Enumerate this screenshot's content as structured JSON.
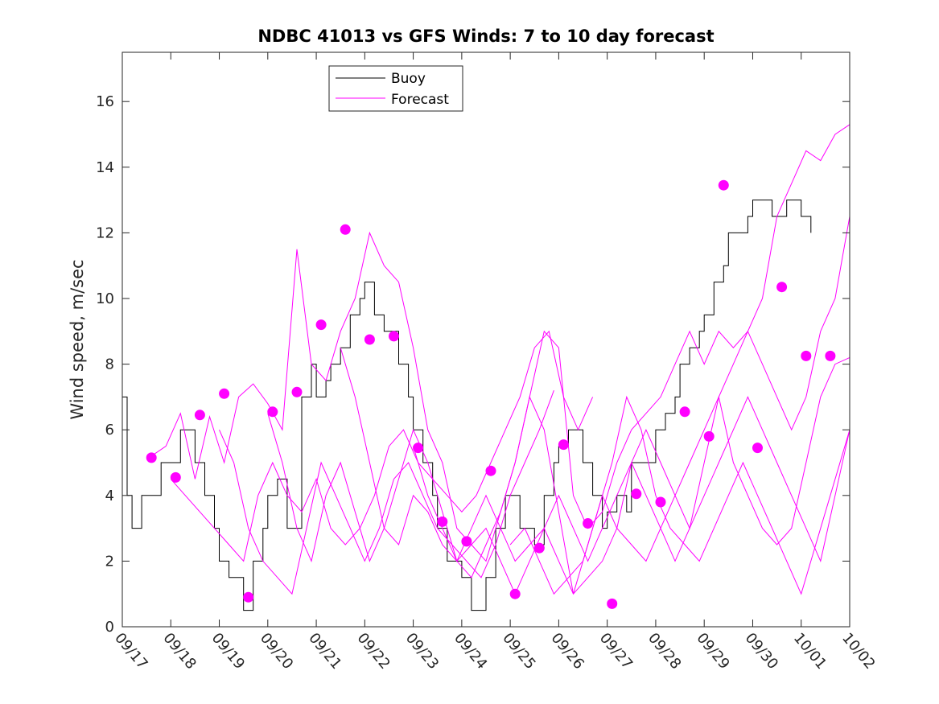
{
  "chart_data": {
    "type": "line",
    "title": "NDBC 41013 vs GFS Winds: 7 to 10 day forecast",
    "xlabel": "",
    "ylabel": "Wind speed, m/sec",
    "xlim": [
      0,
      15
    ],
    "ylim": [
      0,
      17.5
    ],
    "grid": false,
    "legend_position": "top-center",
    "x_ticks": [
      0,
      1,
      2,
      3,
      4,
      5,
      6,
      7,
      8,
      9,
      10,
      11,
      12,
      13,
      14,
      15
    ],
    "x_tick_labels": [
      "09/17",
      "09/18",
      "09/19",
      "09/20",
      "09/21",
      "09/22",
      "09/23",
      "09/24",
      "09/25",
      "09/26",
      "09/27",
      "09/28",
      "09/29",
      "09/30",
      "10/01",
      "10/02"
    ],
    "y_ticks": [
      0,
      2,
      4,
      6,
      8,
      10,
      12,
      14,
      16
    ],
    "y_tick_labels": [
      "0",
      "2",
      "4",
      "6",
      "8",
      "10",
      "12",
      "14",
      "16"
    ],
    "colors": {
      "buoy": "#000000",
      "forecast": "#ff00ff",
      "axes": "#262626"
    },
    "series": [
      {
        "name": "Buoy",
        "kind": "line",
        "x": [
          0,
          0.1,
          0.2,
          0.3,
          0.4,
          0.6,
          0.8,
          1.0,
          1.2,
          1.3,
          1.5,
          1.7,
          1.9,
          2.0,
          2.2,
          2.4,
          2.5,
          2.7,
          2.9,
          3.0,
          3.2,
          3.4,
          3.5,
          3.7,
          3.9,
          4.0,
          4.2,
          4.3,
          4.5,
          4.7,
          4.9,
          5.0,
          5.2,
          5.4,
          5.5,
          5.7,
          5.9,
          6.0,
          6.2,
          6.4,
          6.5,
          6.7,
          6.9,
          7.0,
          7.2,
          7.4,
          7.5,
          7.7,
          7.9,
          8.0,
          8.2,
          8.4,
          8.5,
          8.7,
          8.9,
          9.0,
          9.2,
          9.4,
          9.5,
          9.7,
          9.9,
          10.0,
          10.2,
          10.4,
          10.5,
          10.7,
          10.9,
          11.0,
          11.2,
          11.4,
          11.5,
          11.7,
          11.9,
          12.0,
          12.2,
          12.4,
          12.5,
          12.7,
          12.9,
          13.0,
          13.2,
          13.4,
          13.5,
          13.7,
          13.9,
          14.0,
          14.2
        ],
        "y": [
          7,
          4,
          3,
          3,
          4,
          4,
          5,
          5,
          6,
          6,
          5,
          4,
          3,
          2,
          1.5,
          1.5,
          0.5,
          2,
          3,
          4,
          4.5,
          3,
          3,
          7,
          8,
          7,
          7.5,
          8,
          8.5,
          9.5,
          10,
          10.5,
          9.5,
          9,
          9,
          8,
          7,
          6,
          5,
          4,
          3,
          2,
          2,
          1.5,
          0.5,
          0.5,
          1.5,
          3,
          4,
          4,
          3,
          3,
          2.5,
          4,
          5,
          5.5,
          6,
          6,
          5,
          4,
          3,
          3.5,
          4,
          3.5,
          5,
          5,
          5,
          6,
          6.5,
          7,
          8,
          8.5,
          9,
          9.5,
          10.5,
          11,
          12,
          12,
          12.5,
          13,
          13,
          12.5,
          12.5,
          13,
          13,
          12.5,
          12
        ]
      },
      {
        "name": "Forecast",
        "kind": "line",
        "x": [
          0.6,
          0.9,
          1.2,
          1.5,
          1.8,
          2.1,
          2.4,
          2.7,
          3.0,
          3.3,
          3.6,
          3.9,
          4.2,
          4.5,
          4.8,
          5.1,
          5.4,
          5.7,
          6.0,
          6.3,
          6.6,
          6.9,
          7.2,
          7.5,
          7.8,
          8.1,
          8.4,
          8.7,
          9.0,
          9.3,
          9.6,
          9.9,
          10.2,
          10.5,
          10.8,
          11.1,
          11.4,
          11.7,
          12.0,
          12.3,
          12.6,
          12.9,
          13.2,
          13.5,
          13.8,
          14.1,
          14.4,
          14.7,
          15.0
        ],
        "y": [
          5.2,
          5.5,
          6.5,
          4.5,
          6.4,
          5,
          7,
          7.4,
          6.8,
          6,
          11.5,
          8,
          7.5,
          9,
          10,
          12,
          11,
          10.5,
          8.5,
          6,
          5,
          3,
          2.5,
          2,
          3.5,
          5,
          7,
          9,
          8.5,
          4,
          3,
          3.5,
          5,
          6,
          6.5,
          7,
          8,
          9,
          8,
          9,
          8.5,
          9,
          10,
          12.5,
          13.5,
          14.5,
          14.2,
          15,
          15.3
        ]
      },
      {
        "name": "Forecast",
        "kind": "line",
        "x": [
          1.0,
          1.3,
          1.6,
          1.9,
          2.2,
          2.5,
          2.8,
          3.1,
          3.4,
          3.7,
          4.0,
          4.3,
          4.6,
          4.9,
          5.2,
          5.5,
          5.8,
          6.1,
          6.4,
          6.7,
          7.0,
          7.3,
          7.6,
          7.9,
          8.2,
          8.5,
          8.8,
          9.1,
          9.4,
          9.7
        ],
        "y": [
          4.5,
          4,
          3.5,
          3,
          2.5,
          2,
          4,
          5,
          4,
          3.5,
          4.5,
          3,
          2.5,
          3,
          4,
          5.5,
          6,
          5,
          4.5,
          4,
          3.5,
          4,
          5,
          6,
          7,
          8.5,
          9,
          7,
          6,
          7
        ]
      },
      {
        "name": "Forecast",
        "kind": "line",
        "x": [
          3.0,
          3.3,
          3.6,
          3.9,
          4.2,
          4.5,
          4.8,
          5.1,
          5.4,
          5.7,
          6.0,
          6.3,
          6.6,
          6.9,
          7.2,
          7.5,
          7.8,
          8.1,
          8.4,
          8.7,
          9.0,
          9.3,
          9.6,
          9.9,
          10.2,
          10.5,
          10.8,
          11.1,
          11.4,
          11.7,
          12.0,
          12.3,
          12.6,
          12.9,
          13.2,
          13.5,
          13.8,
          14.1,
          14.4,
          14.7,
          15.0
        ],
        "y": [
          6.5,
          5,
          3,
          2,
          4,
          5,
          3.5,
          2,
          3,
          2.5,
          4,
          3.5,
          2.5,
          2,
          2.5,
          3,
          2,
          1,
          2,
          3,
          4,
          3,
          2,
          3,
          4,
          5,
          4,
          3,
          2,
          3,
          4,
          5,
          6,
          7,
          6,
          5,
          4,
          3,
          2,
          4,
          6
        ]
      },
      {
        "name": "Forecast",
        "kind": "line",
        "x": [
          4.5,
          4.8,
          5.1,
          5.4,
          5.7,
          6.0,
          6.3,
          6.6,
          6.9,
          7.2,
          7.5,
          7.8,
          8.1,
          8.4,
          8.7,
          9.0,
          9.3,
          9.6,
          9.9,
          10.2,
          10.5,
          10.8,
          11.1,
          11.4,
          11.7,
          12.0,
          12.3,
          12.6,
          12.9,
          13.2,
          13.5,
          13.8,
          14.1,
          14.4,
          14.7,
          15.0
        ],
        "y": [
          8.5,
          7,
          5,
          3,
          4.5,
          6,
          5,
          3.5,
          2,
          3,
          4,
          3,
          2,
          2.5,
          3,
          2,
          1,
          1.5,
          2,
          3,
          5,
          6,
          5,
          4,
          3,
          5,
          7,
          8,
          9,
          8,
          7,
          6,
          7,
          9,
          10,
          12.5
        ]
      },
      {
        "name": "Forecast",
        "kind": "line",
        "x": [
          6.0,
          6.3,
          6.6,
          6.9,
          7.2,
          7.5,
          7.8,
          8.1,
          8.4,
          8.7,
          9.0,
          9.3,
          9.6,
          9.9,
          10.2,
          10.5,
          10.8,
          11.1,
          11.4,
          11.7,
          12.0,
          12.3,
          12.6,
          12.9,
          13.2,
          13.5,
          13.8,
          14.1,
          14.4,
          14.7,
          15.0
        ],
        "y": [
          5.5,
          4,
          3,
          2,
          1.5,
          2.5,
          3.5,
          5,
          7,
          6,
          3.5,
          1,
          2.5,
          4,
          3,
          2.5,
          2,
          3,
          4,
          5,
          6,
          7,
          5,
          4,
          3,
          2.5,
          3,
          5,
          7,
          8,
          8.2
        ]
      },
      {
        "name": "Forecast",
        "kind": "line",
        "x": [
          8.0,
          8.3,
          8.6,
          8.9,
          9.2,
          9.5,
          9.8,
          10.1,
          10.4,
          10.7,
          11.0,
          11.3,
          11.6,
          11.9,
          12.2,
          12.5,
          12.8,
          13.1,
          13.4,
          13.7,
          14.0,
          14.3,
          14.6,
          15.0
        ],
        "y": [
          2.5,
          3,
          2,
          1,
          1.5,
          2,
          3.5,
          5,
          7,
          6,
          4,
          3,
          2.5,
          2,
          3,
          4,
          5,
          4,
          3,
          2,
          1,
          2.5,
          4,
          6
        ]
      },
      {
        "name": "Forecast",
        "kind": "line",
        "x": [
          2.0,
          2.3,
          2.6,
          2.9,
          3.2,
          3.5,
          3.8,
          4.1,
          4.4,
          4.7,
          5.0,
          5.3,
          5.6,
          5.9,
          6.2,
          6.5,
          6.8,
          7.1,
          7.4,
          7.7,
          8.0,
          8.3,
          8.6,
          8.9
        ],
        "y": [
          6,
          5,
          3,
          2,
          1.5,
          1,
          3,
          5,
          4,
          3,
          2,
          3,
          4.5,
          5,
          4,
          3,
          2.5,
          2,
          1.5,
          2.5,
          4,
          5,
          6,
          7.2
        ]
      },
      {
        "name": "Forecast (daily marker)",
        "kind": "scatter",
        "x": [
          0.6,
          1.1,
          1.6,
          2.1,
          2.6,
          3.1,
          3.6,
          4.1,
          4.6,
          5.1,
          5.6,
          6.1,
          6.6,
          7.1,
          7.6,
          8.1,
          8.6,
          9.1,
          9.6,
          10.1,
          10.6,
          11.1,
          11.6,
          12.1,
          12.4,
          13.1,
          13.6,
          14.1,
          14.6
        ],
        "y": [
          5.15,
          4.55,
          6.45,
          7.1,
          0.9,
          6.55,
          7.15,
          9.2,
          12.1,
          8.75,
          8.85,
          5.45,
          3.2,
          2.6,
          4.75,
          1.0,
          2.4,
          5.55,
          3.15,
          0.7,
          4.05,
          3.8,
          6.55,
          5.8,
          13.45,
          5.45,
          10.35,
          8.25,
          8.25
        ]
      }
    ],
    "legend": [
      {
        "label": "Buoy",
        "color": "#000000"
      },
      {
        "label": "Forecast",
        "color": "#ff00ff"
      }
    ]
  }
}
